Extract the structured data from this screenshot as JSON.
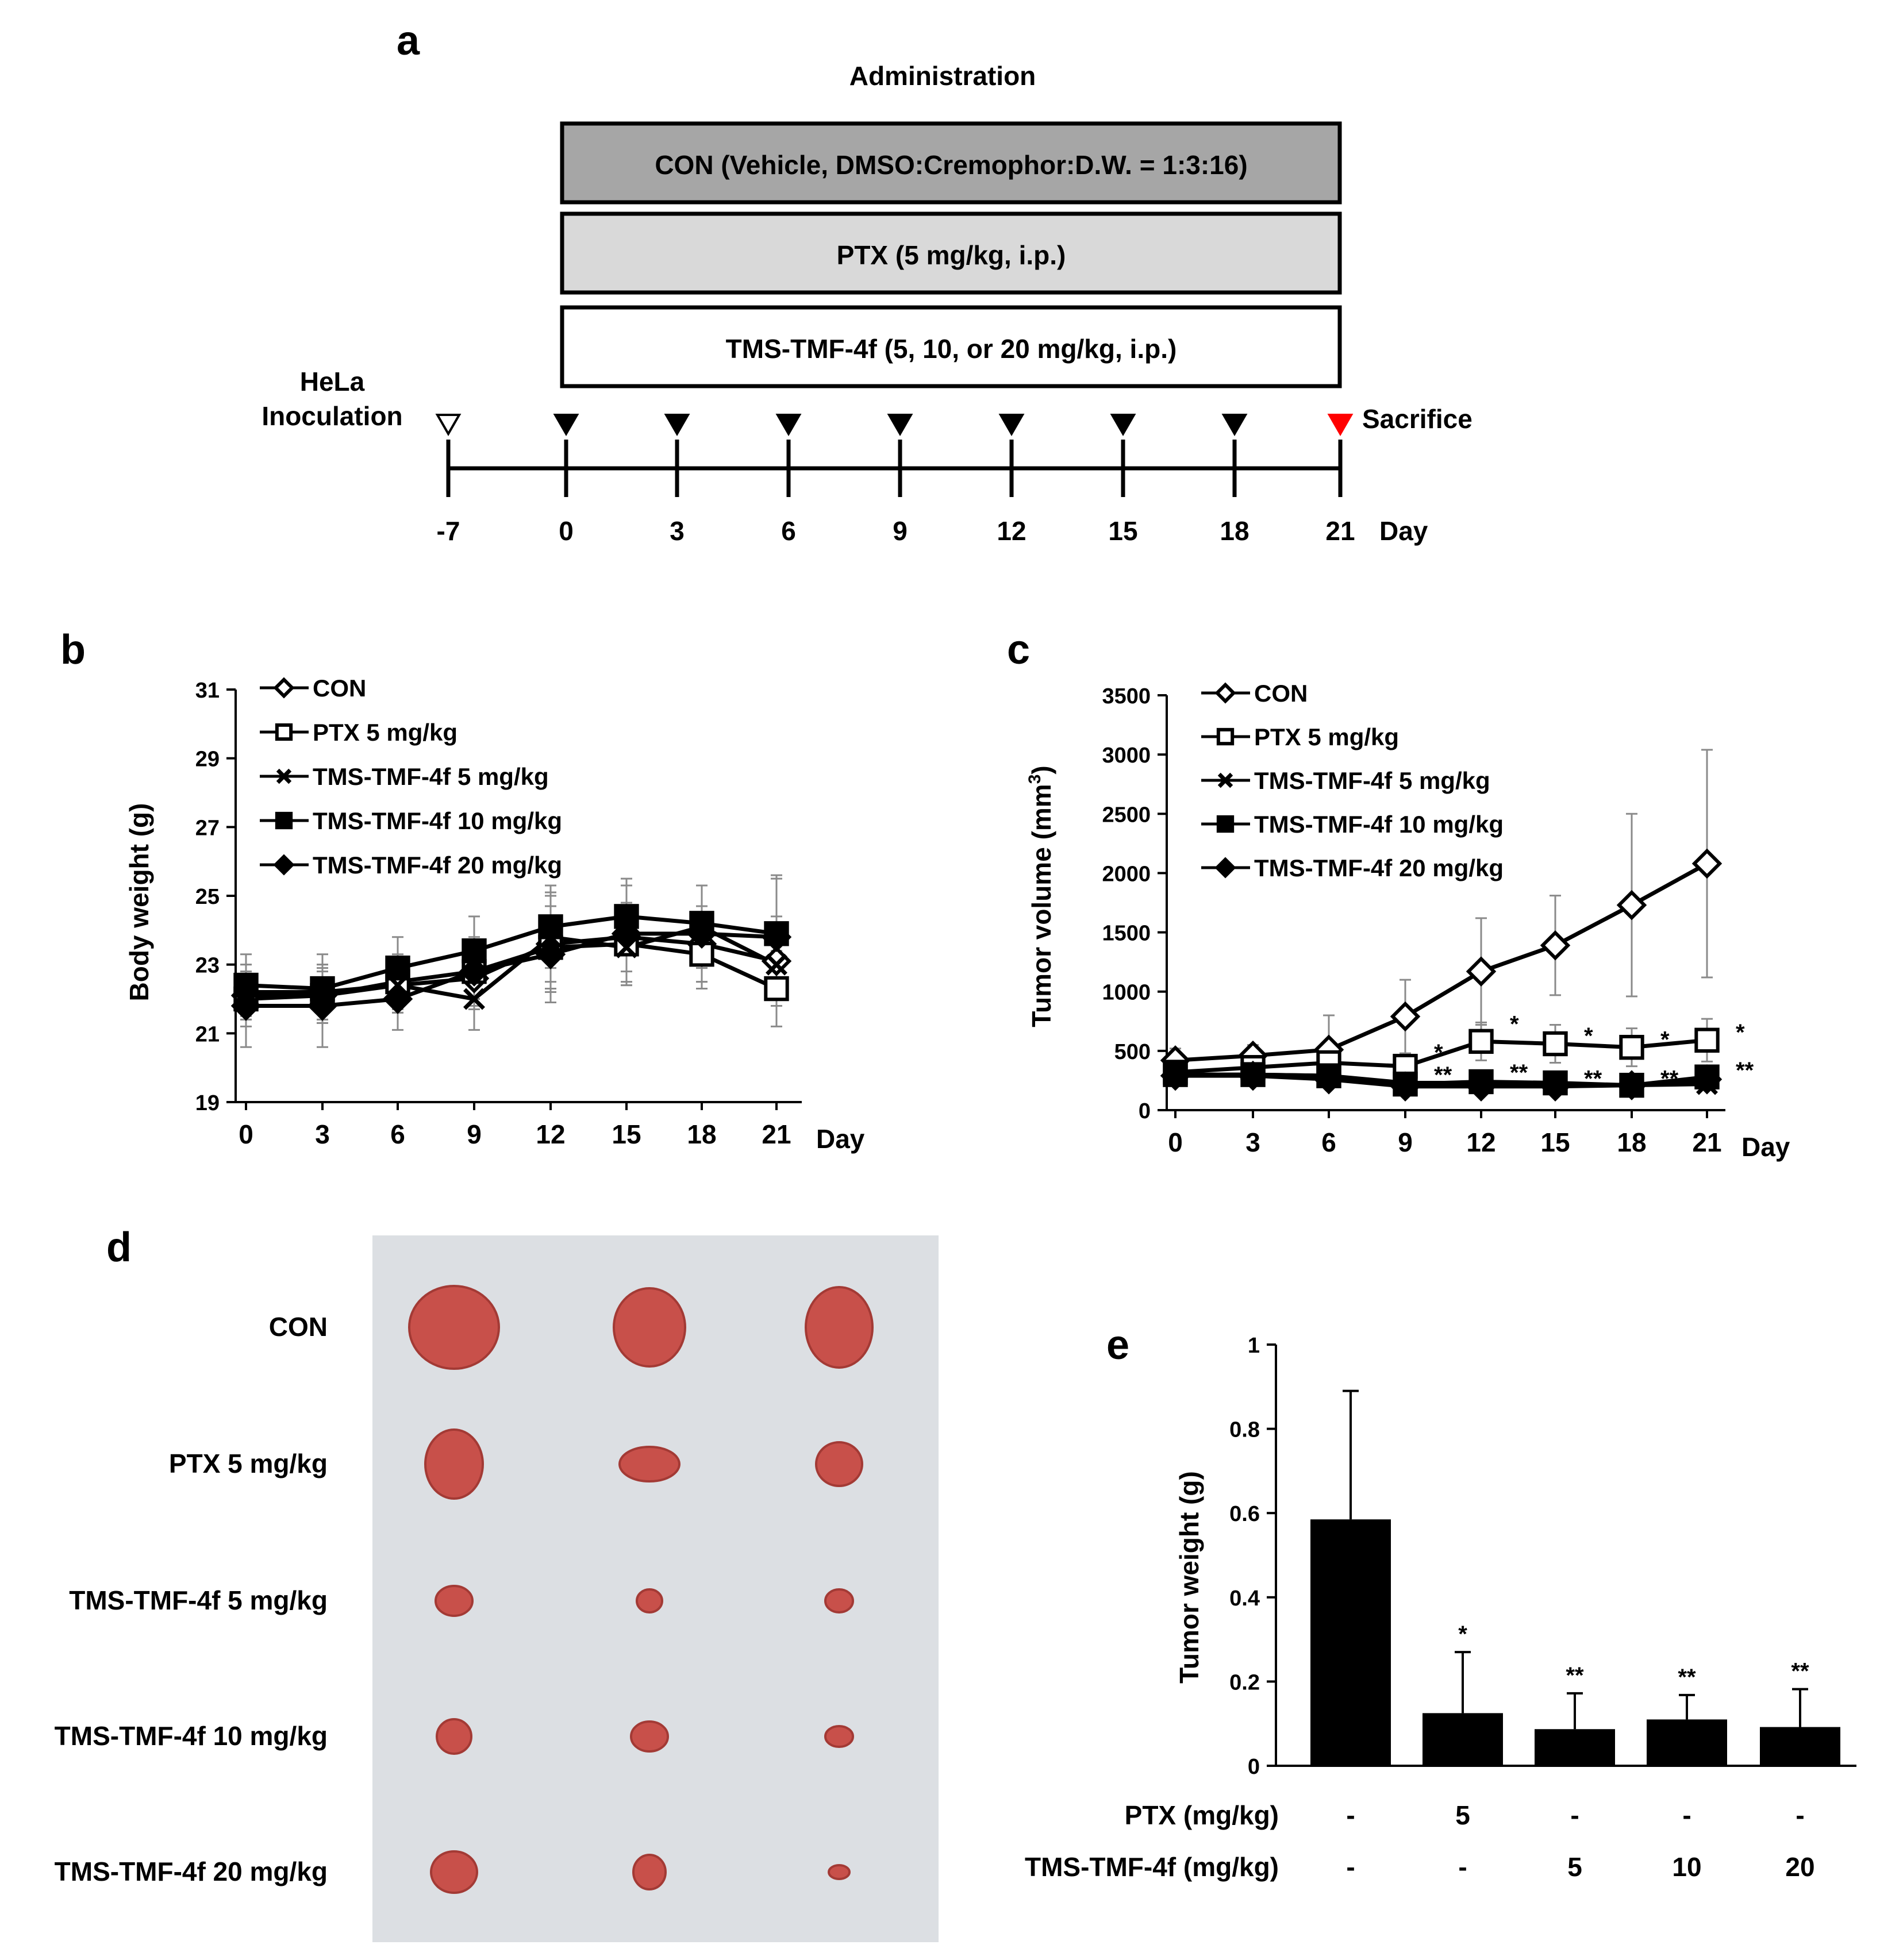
{
  "panels": {
    "a": {
      "letter": "a",
      "administration_label": "Administration",
      "boxes": [
        {
          "label": "CON (Vehicle, DMSO:Cremophor:D.W. = 1:3:16)",
          "fill": "#a6a6a6"
        },
        {
          "label": "PTX (5 mg/kg, i.p.)",
          "fill": "#d9d9d9"
        },
        {
          "label": "TMS-TMF-4f (5, 10, or 20 mg/kg, i.p.)",
          "fill": "#ffffff"
        }
      ],
      "inoculation_label_line1": "HeLa",
      "inoculation_label_line2": "Inoculation",
      "sacrifice_label": "Sacrifice",
      "day_label": "Day",
      "days": [
        "-7",
        "0",
        "3",
        "6",
        "9",
        "12",
        "15",
        "18",
        "21"
      ],
      "marker_colors": {
        "inoculation": "#ffffff",
        "dose": "#000000",
        "sacrifice": "#ff0000"
      }
    },
    "b": {
      "letter": "b"
    },
    "c": {
      "letter": "c"
    },
    "d": {
      "letter": "d",
      "row_labels": [
        "CON",
        "PTX 5 mg/kg",
        "TMS-TMF-4f 5 mg/kg",
        "TMS-TMF-4f 10 mg/kg",
        "TMS-TMF-4f 20 mg/kg"
      ],
      "photo_bg": "#dcdfe3",
      "tumor_color": "#c8504a"
    },
    "e": {
      "letter": "e",
      "row1_label": "PTX (mg/kg)",
      "row1_values": [
        "-",
        "5",
        "-",
        "-",
        "-"
      ],
      "row2_label": "TMS-TMF-4f (mg/kg)",
      "row2_values": [
        "-",
        "-",
        "5",
        "10",
        "20"
      ]
    }
  },
  "chart_data": [
    {
      "id": "b",
      "type": "line",
      "ylabel": "Body weight (g)",
      "xlabel": "Day",
      "x": [
        0,
        3,
        6,
        9,
        12,
        15,
        18,
        21
      ],
      "ylim": [
        19,
        31
      ],
      "yticks": [
        19,
        21,
        23,
        25,
        27,
        29,
        31
      ],
      "legend_position": "top-left",
      "series": [
        {
          "name": "CON",
          "marker": "diamond-open",
          "values": [
            22.1,
            22.1,
            22.4,
            22.6,
            23.6,
            23.8,
            23.6,
            23.1
          ],
          "errors": [
            0.7,
            0.7,
            0.8,
            0.9,
            1.4,
            1.0,
            1.1,
            1.3
          ]
        },
        {
          "name": "PTX 5 mg/kg",
          "marker": "square-open",
          "values": [
            22.0,
            22.1,
            22.5,
            22.8,
            23.5,
            23.6,
            23.3,
            22.3
          ],
          "errors": [
            0.8,
            0.8,
            0.8,
            0.8,
            1.2,
            1.2,
            1.0,
            1.1
          ]
        },
        {
          "name": "TMS-TMF-4f 5 mg/kg",
          "marker": "cross",
          "values": [
            22.2,
            22.2,
            22.4,
            22.0,
            23.8,
            23.5,
            24.1,
            23.0
          ],
          "errors": [
            0.8,
            0.8,
            0.8,
            0.9,
            1.3,
            1.1,
            1.2,
            1.2
          ]
        },
        {
          "name": "TMS-TMF-4f 10 mg/kg",
          "marker": "square-filled",
          "values": [
            22.4,
            22.3,
            22.9,
            23.4,
            24.1,
            24.4,
            24.2,
            23.9
          ],
          "errors": [
            0.9,
            1.0,
            0.9,
            1.0,
            1.2,
            1.1,
            1.1,
            1.7
          ]
        },
        {
          "name": "TMS-TMF-4f 20 mg/kg",
          "marker": "diamond-filled",
          "values": [
            21.8,
            21.8,
            22.0,
            22.8,
            23.3,
            23.9,
            23.9,
            23.8
          ],
          "errors": [
            1.2,
            1.2,
            0.9,
            1.0,
            1.4,
            1.4,
            1.4,
            1.7
          ]
        }
      ]
    },
    {
      "id": "c",
      "type": "line",
      "ylabel": "Tumor volume (mm3)",
      "ylabel_main": "Tumor volume (mm",
      "ylabel_sup": "3",
      "ylabel_close": ")",
      "xlabel": "Day",
      "x": [
        0,
        3,
        6,
        9,
        12,
        15,
        18,
        21
      ],
      "ylim": [
        0,
        3500
      ],
      "yticks": [
        0,
        500,
        1000,
        1500,
        2000,
        2500,
        3000,
        3500
      ],
      "legend_position": "top-left",
      "series": [
        {
          "name": "CON",
          "marker": "diamond-open",
          "values": [
            420,
            460,
            510,
            790,
            1170,
            1390,
            1730,
            2080
          ],
          "errors": [
            100,
            90,
            290,
            310,
            450,
            420,
            770,
            960
          ]
        },
        {
          "name": "PTX 5 mg/kg",
          "marker": "square-open",
          "values": [
            320,
            360,
            400,
            370,
            580,
            560,
            530,
            590
          ],
          "errors": [
            80,
            80,
            90,
            90,
            160,
            160,
            160,
            180
          ]
        },
        {
          "name": "TMS-TMF-4f 5 mg/kg",
          "marker": "cross",
          "values": [
            300,
            300,
            290,
            230,
            230,
            220,
            210,
            220
          ],
          "errors": [
            70,
            70,
            70,
            60,
            60,
            50,
            50,
            50
          ]
        },
        {
          "name": "TMS-TMF-4f 10 mg/kg",
          "marker": "square-filled",
          "values": [
            300,
            300,
            290,
            220,
            240,
            230,
            210,
            280
          ],
          "errors": [
            70,
            70,
            70,
            60,
            60,
            60,
            60,
            70
          ]
        },
        {
          "name": "TMS-TMF-4f 20 mg/kg",
          "marker": "diamond-filled",
          "values": [
            290,
            290,
            260,
            200,
            200,
            200,
            210,
            260
          ],
          "errors": [
            70,
            70,
            60,
            50,
            50,
            50,
            50,
            60
          ]
        }
      ],
      "annotations": [
        {
          "text": "*",
          "x": 9,
          "y": 480
        },
        {
          "text": "**",
          "x": 9,
          "y": 290
        },
        {
          "text": "*",
          "x": 12,
          "y": 720
        },
        {
          "text": "**",
          "x": 12,
          "y": 310
        },
        {
          "text": "*",
          "x": 15,
          "y": 620
        },
        {
          "text": "**",
          "x": 15,
          "y": 260
        },
        {
          "text": "*",
          "x": 18,
          "y": 590
        },
        {
          "text": "**",
          "x": 18,
          "y": 260
        },
        {
          "text": "*",
          "x": 21,
          "y": 650
        },
        {
          "text": "**",
          "x": 21,
          "y": 330
        }
      ]
    },
    {
      "id": "e",
      "type": "bar",
      "ylabel": "Tumor weight (g)",
      "categories": [
        "CON",
        "PTX 5",
        "TMS-TMF-4f 5",
        "TMS-TMF-4f 10",
        "TMS-TMF-4f 20"
      ],
      "values": [
        0.585,
        0.125,
        0.087,
        0.11,
        0.092
      ],
      "errors": [
        0.305,
        0.145,
        0.085,
        0.058,
        0.09
      ],
      "significance": [
        "",
        "*",
        "**",
        "**",
        "**"
      ],
      "ylim": [
        0,
        1
      ],
      "yticks": [
        "0",
        "0.2",
        "0.4",
        "0.6",
        "0.8",
        "1"
      ],
      "bar_color": "#000000"
    }
  ]
}
